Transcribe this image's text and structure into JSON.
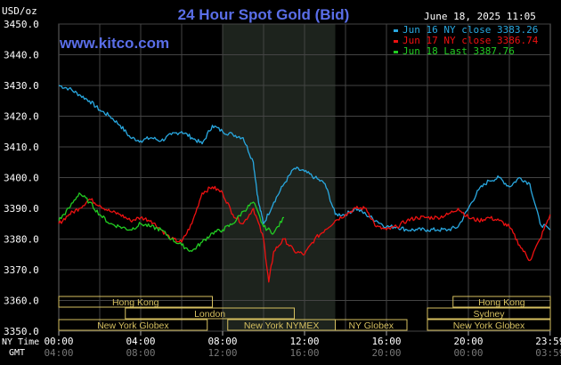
{
  "chart_data": {
    "type": "line",
    "title": "24 Hour Spot Gold (Bid)",
    "site": "www.kitco.com",
    "timestamp": "June 18, 2025 11:05",
    "ylabel": "USD/oz",
    "ylim": [
      3350,
      3450
    ],
    "y_ticks": [
      "3450.0",
      "3440.0",
      "3430.0",
      "3420.0",
      "3410.0",
      "3400.0",
      "3390.0",
      "3380.0",
      "3370.0",
      "3360.0",
      "3350.0"
    ],
    "x_label_ny": "NY Time",
    "x_label_gmt": "GMT",
    "x_ticks_ny": [
      "00:00",
      "04:00",
      "08:00",
      "12:00",
      "16:00",
      "20:00",
      "23:59"
    ],
    "x_ticks_gmt": [
      "04:00",
      "08:00",
      "12:00",
      "16:00",
      "20:00",
      "00:00",
      "03:59"
    ],
    "xlim": [
      0,
      24
    ],
    "grid": true,
    "legend_position": "top-right",
    "shaded_region": [
      8,
      13.5
    ],
    "markets": [
      {
        "name": "Hong Kong",
        "start": 0,
        "end": 7.5,
        "row": 1
      },
      {
        "name": "London",
        "start": 3.25,
        "end": 11.5,
        "row": 2
      },
      {
        "name": "New York Globex",
        "start": 0,
        "end": 7.25,
        "row": 3
      },
      {
        "name": "New York NYMEX",
        "start": 8.25,
        "end": 13.5,
        "row": 3
      },
      {
        "name": "NY Globex",
        "start": 13.5,
        "end": 17,
        "row": 3
      },
      {
        "name": "Hong Kong",
        "start": 19.25,
        "end": 24,
        "row": 1
      },
      {
        "name": "Sydney",
        "start": 18,
        "end": 24,
        "row": 2
      },
      {
        "name": "New York Globex",
        "start": 18,
        "end": 24,
        "row": 3
      }
    ],
    "series": [
      {
        "name": "Jun 16 NY close 3383.26",
        "color": "#29a8e0",
        "x": [
          0,
          0.5,
          1,
          1.5,
          2,
          2.5,
          3,
          3.5,
          4,
          4.5,
          5,
          5.5,
          6,
          6.5,
          7,
          7.5,
          8,
          8.5,
          9,
          9.5,
          9.75,
          10,
          10.5,
          11,
          11.5,
          12,
          12.5,
          13,
          13.5,
          14,
          14.5,
          15,
          15.5,
          16,
          16.5,
          17,
          17.5,
          18,
          18.5,
          19,
          19.5,
          20,
          20.5,
          21,
          21.5,
          22,
          22.5,
          23,
          23.5,
          23.99
        ],
        "y": [
          3430,
          3429,
          3427,
          3425,
          3422,
          3420,
          3417,
          3413,
          3412,
          3413,
          3412,
          3414,
          3415,
          3413,
          3411,
          3417,
          3415,
          3414,
          3413,
          3405,
          3392,
          3385,
          3392,
          3398,
          3403,
          3402,
          3400,
          3398,
          3388,
          3388,
          3390,
          3388,
          3386,
          3384,
          3384,
          3383,
          3383,
          3383,
          3383,
          3383,
          3384,
          3390,
          3396,
          3399,
          3400,
          3397,
          3400,
          3398,
          3385,
          3383
        ]
      },
      {
        "name": "Jun 17 NY close 3386.74",
        "color": "#ee1111",
        "x": [
          0,
          0.5,
          1,
          1.5,
          2,
          2.5,
          3,
          3.5,
          4,
          4.5,
          5,
          5.5,
          6,
          6.5,
          7,
          7.5,
          8,
          8.5,
          9,
          9.5,
          10,
          10.25,
          10.5,
          11,
          11.5,
          12,
          12.5,
          13,
          13.5,
          14,
          14.5,
          15,
          15.5,
          16,
          16.5,
          17,
          17.5,
          18,
          18.5,
          19,
          19.5,
          20,
          20.5,
          21,
          21.5,
          22,
          22.5,
          23,
          23.5,
          23.99
        ],
        "y": [
          3385,
          3388,
          3390,
          3393,
          3391,
          3389,
          3388,
          3386,
          3387,
          3386,
          3383,
          3380,
          3379,
          3385,
          3395,
          3397,
          3395,
          3388,
          3385,
          3390,
          3380,
          3366,
          3376,
          3380,
          3376,
          3375,
          3380,
          3383,
          3386,
          3388,
          3390,
          3390,
          3384,
          3383,
          3384,
          3386,
          3387,
          3387,
          3387,
          3388,
          3390,
          3387,
          3386,
          3387,
          3386,
          3384,
          3378,
          3373,
          3380,
          3388
        ]
      },
      {
        "name": "Jun 18 Last 3387.76",
        "color": "#22cc22",
        "x": [
          0,
          0.5,
          1,
          1.5,
          2,
          2.5,
          3,
          3.5,
          4,
          4.5,
          5,
          5.5,
          6,
          6.5,
          7,
          7.5,
          8,
          8.5,
          9,
          9.5,
          10,
          10.5,
          11
        ],
        "y": [
          3386,
          3390,
          3395,
          3392,
          3388,
          3385,
          3384,
          3383,
          3385,
          3384,
          3383,
          3380,
          3378,
          3376,
          3379,
          3382,
          3383,
          3385,
          3389,
          3392,
          3384,
          3382,
          3387
        ]
      }
    ]
  }
}
